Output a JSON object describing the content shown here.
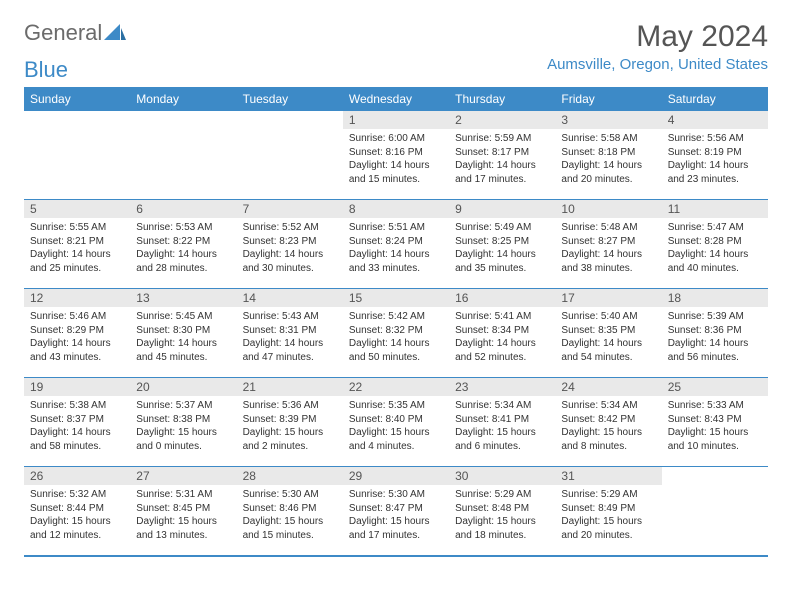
{
  "logo": {
    "part1": "General",
    "part2": "Blue"
  },
  "title": "May 2024",
  "location": "Aumsville, Oregon, United States",
  "colors": {
    "accent": "#3d8ac7",
    "header_bg": "#3d8ac7",
    "header_text": "#ffffff",
    "daynum_bg": "#e9e9e9",
    "text": "#333333",
    "logo_gray": "#6b6b6b"
  },
  "weekdays": [
    "Sunday",
    "Monday",
    "Tuesday",
    "Wednesday",
    "Thursday",
    "Friday",
    "Saturday"
  ],
  "weeks": [
    [
      {
        "empty": true
      },
      {
        "empty": true
      },
      {
        "empty": true
      },
      {
        "day": "1",
        "sunrise": "Sunrise: 6:00 AM",
        "sunset": "Sunset: 8:16 PM",
        "daylight": "Daylight: 14 hours and 15 minutes."
      },
      {
        "day": "2",
        "sunrise": "Sunrise: 5:59 AM",
        "sunset": "Sunset: 8:17 PM",
        "daylight": "Daylight: 14 hours and 17 minutes."
      },
      {
        "day": "3",
        "sunrise": "Sunrise: 5:58 AM",
        "sunset": "Sunset: 8:18 PM",
        "daylight": "Daylight: 14 hours and 20 minutes."
      },
      {
        "day": "4",
        "sunrise": "Sunrise: 5:56 AM",
        "sunset": "Sunset: 8:19 PM",
        "daylight": "Daylight: 14 hours and 23 minutes."
      }
    ],
    [
      {
        "day": "5",
        "sunrise": "Sunrise: 5:55 AM",
        "sunset": "Sunset: 8:21 PM",
        "daylight": "Daylight: 14 hours and 25 minutes."
      },
      {
        "day": "6",
        "sunrise": "Sunrise: 5:53 AM",
        "sunset": "Sunset: 8:22 PM",
        "daylight": "Daylight: 14 hours and 28 minutes."
      },
      {
        "day": "7",
        "sunrise": "Sunrise: 5:52 AM",
        "sunset": "Sunset: 8:23 PM",
        "daylight": "Daylight: 14 hours and 30 minutes."
      },
      {
        "day": "8",
        "sunrise": "Sunrise: 5:51 AM",
        "sunset": "Sunset: 8:24 PM",
        "daylight": "Daylight: 14 hours and 33 minutes."
      },
      {
        "day": "9",
        "sunrise": "Sunrise: 5:49 AM",
        "sunset": "Sunset: 8:25 PM",
        "daylight": "Daylight: 14 hours and 35 minutes."
      },
      {
        "day": "10",
        "sunrise": "Sunrise: 5:48 AM",
        "sunset": "Sunset: 8:27 PM",
        "daylight": "Daylight: 14 hours and 38 minutes."
      },
      {
        "day": "11",
        "sunrise": "Sunrise: 5:47 AM",
        "sunset": "Sunset: 8:28 PM",
        "daylight": "Daylight: 14 hours and 40 minutes."
      }
    ],
    [
      {
        "day": "12",
        "sunrise": "Sunrise: 5:46 AM",
        "sunset": "Sunset: 8:29 PM",
        "daylight": "Daylight: 14 hours and 43 minutes."
      },
      {
        "day": "13",
        "sunrise": "Sunrise: 5:45 AM",
        "sunset": "Sunset: 8:30 PM",
        "daylight": "Daylight: 14 hours and 45 minutes."
      },
      {
        "day": "14",
        "sunrise": "Sunrise: 5:43 AM",
        "sunset": "Sunset: 8:31 PM",
        "daylight": "Daylight: 14 hours and 47 minutes."
      },
      {
        "day": "15",
        "sunrise": "Sunrise: 5:42 AM",
        "sunset": "Sunset: 8:32 PM",
        "daylight": "Daylight: 14 hours and 50 minutes."
      },
      {
        "day": "16",
        "sunrise": "Sunrise: 5:41 AM",
        "sunset": "Sunset: 8:34 PM",
        "daylight": "Daylight: 14 hours and 52 minutes."
      },
      {
        "day": "17",
        "sunrise": "Sunrise: 5:40 AM",
        "sunset": "Sunset: 8:35 PM",
        "daylight": "Daylight: 14 hours and 54 minutes."
      },
      {
        "day": "18",
        "sunrise": "Sunrise: 5:39 AM",
        "sunset": "Sunset: 8:36 PM",
        "daylight": "Daylight: 14 hours and 56 minutes."
      }
    ],
    [
      {
        "day": "19",
        "sunrise": "Sunrise: 5:38 AM",
        "sunset": "Sunset: 8:37 PM",
        "daylight": "Daylight: 14 hours and 58 minutes."
      },
      {
        "day": "20",
        "sunrise": "Sunrise: 5:37 AM",
        "sunset": "Sunset: 8:38 PM",
        "daylight": "Daylight: 15 hours and 0 minutes."
      },
      {
        "day": "21",
        "sunrise": "Sunrise: 5:36 AM",
        "sunset": "Sunset: 8:39 PM",
        "daylight": "Daylight: 15 hours and 2 minutes."
      },
      {
        "day": "22",
        "sunrise": "Sunrise: 5:35 AM",
        "sunset": "Sunset: 8:40 PM",
        "daylight": "Daylight: 15 hours and 4 minutes."
      },
      {
        "day": "23",
        "sunrise": "Sunrise: 5:34 AM",
        "sunset": "Sunset: 8:41 PM",
        "daylight": "Daylight: 15 hours and 6 minutes."
      },
      {
        "day": "24",
        "sunrise": "Sunrise: 5:34 AM",
        "sunset": "Sunset: 8:42 PM",
        "daylight": "Daylight: 15 hours and 8 minutes."
      },
      {
        "day": "25",
        "sunrise": "Sunrise: 5:33 AM",
        "sunset": "Sunset: 8:43 PM",
        "daylight": "Daylight: 15 hours and 10 minutes."
      }
    ],
    [
      {
        "day": "26",
        "sunrise": "Sunrise: 5:32 AM",
        "sunset": "Sunset: 8:44 PM",
        "daylight": "Daylight: 15 hours and 12 minutes."
      },
      {
        "day": "27",
        "sunrise": "Sunrise: 5:31 AM",
        "sunset": "Sunset: 8:45 PM",
        "daylight": "Daylight: 15 hours and 13 minutes."
      },
      {
        "day": "28",
        "sunrise": "Sunrise: 5:30 AM",
        "sunset": "Sunset: 8:46 PM",
        "daylight": "Daylight: 15 hours and 15 minutes."
      },
      {
        "day": "29",
        "sunrise": "Sunrise: 5:30 AM",
        "sunset": "Sunset: 8:47 PM",
        "daylight": "Daylight: 15 hours and 17 minutes."
      },
      {
        "day": "30",
        "sunrise": "Sunrise: 5:29 AM",
        "sunset": "Sunset: 8:48 PM",
        "daylight": "Daylight: 15 hours and 18 minutes."
      },
      {
        "day": "31",
        "sunrise": "Sunrise: 5:29 AM",
        "sunset": "Sunset: 8:49 PM",
        "daylight": "Daylight: 15 hours and 20 minutes."
      },
      {
        "empty": true
      }
    ]
  ]
}
